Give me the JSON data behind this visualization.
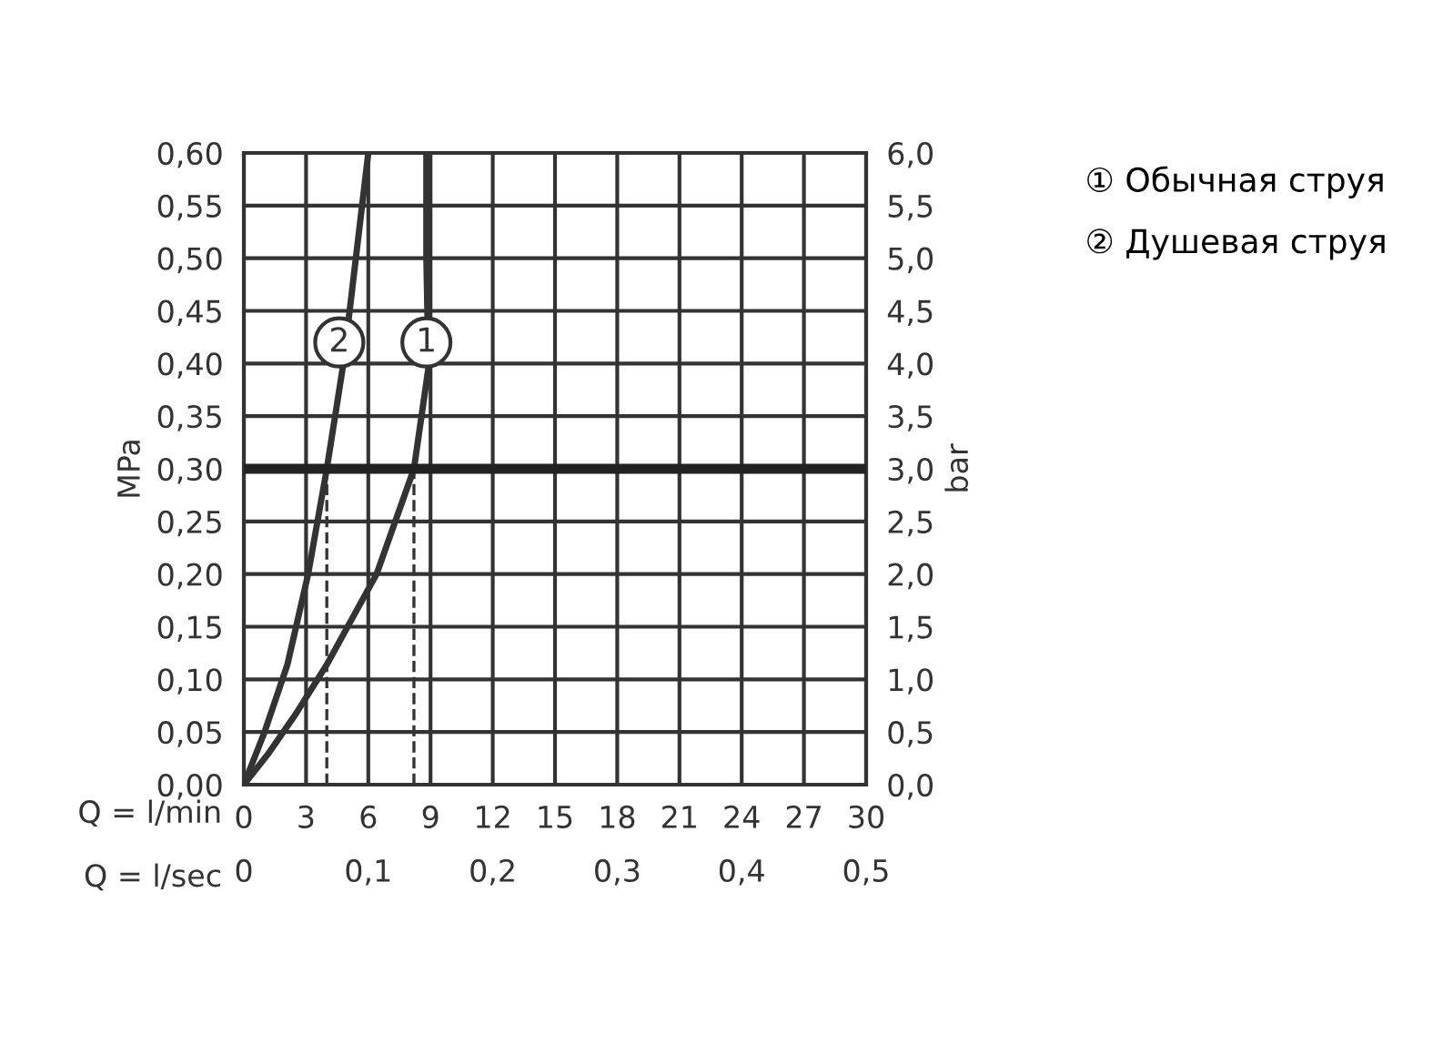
{
  "chart_data": {
    "type": "line",
    "ylabel": "MPa",
    "y2label": "bar",
    "xlabel": "Q = l/min",
    "x2label": "Q = l/sec",
    "xlim": [
      0,
      30
    ],
    "xticks": [
      0,
      3,
      6,
      9,
      12,
      15,
      18,
      21,
      24,
      27,
      30
    ],
    "x2lim": [
      0,
      0.5
    ],
    "x2ticks": [
      0,
      {
        "value": 0.1,
        "label": "0,1"
      },
      {
        "value": 0.2,
        "label": "0,2"
      },
      {
        "value": 0.3,
        "label": "0,3"
      },
      {
        "value": 0.4,
        "label": "0,4"
      },
      {
        "value": 0.5,
        "label": "0,5"
      }
    ],
    "ylim": [
      0,
      0.6
    ],
    "yticks": [
      {
        "value": 0,
        "label": "0,00"
      },
      {
        "value": 0.05,
        "label": "0,05"
      },
      {
        "value": 0.1,
        "label": "0,10"
      },
      {
        "value": 0.15,
        "label": "0,15"
      },
      {
        "value": 0.2,
        "label": "0,20"
      },
      {
        "value": 0.25,
        "label": "0,25"
      },
      {
        "value": 0.3,
        "label": "0,30"
      },
      {
        "value": 0.35,
        "label": "0,35"
      },
      {
        "value": 0.4,
        "label": "0,40"
      },
      {
        "value": 0.45,
        "label": "0,45"
      },
      {
        "value": 0.5,
        "label": "0,50"
      },
      {
        "value": 0.55,
        "label": "0,55"
      },
      {
        "value": 0.6,
        "label": "0,60"
      }
    ],
    "y2lim": [
      0,
      6
    ],
    "y2ticks": [
      {
        "value": 0,
        "label": "0,0"
      },
      {
        "value": 0.5,
        "label": "0,5"
      },
      {
        "value": 1,
        "label": "1,0"
      },
      {
        "value": 1.5,
        "label": "1,5"
      },
      {
        "value": 2,
        "label": "2,0"
      },
      {
        "value": 2.5,
        "label": "2,5"
      },
      {
        "value": 3,
        "label": "3,0"
      },
      {
        "value": 3.5,
        "label": "3,5"
      },
      {
        "value": 4,
        "label": "4,0"
      },
      {
        "value": 4.5,
        "label": "4,5"
      },
      {
        "value": 5,
        "label": "5,0"
      },
      {
        "value": 5.5,
        "label": "5,5"
      },
      {
        "value": 6,
        "label": "6,0"
      }
    ],
    "grid": true,
    "legend": "right",
    "marker": "none",
    "line_style": "solid",
    "series": [
      {
        "name": "① Обычная струя",
        "color": "#333333",
        "x": [
          0,
          1.2,
          2.5,
          4.0,
          6.4,
          8.2,
          8.9,
          8.8,
          8.8
        ],
        "values": [
          0,
          0.03,
          0.067,
          0.114,
          0.2,
          0.3,
          0.396,
          0.5,
          0.6
        ]
      },
      {
        "name": "② Душевая струя",
        "color": "#333333",
        "x": [
          0,
          1.0,
          2.1,
          3.1,
          4.0,
          4.8,
          5.4,
          6.0
        ],
        "values": [
          0,
          0.05,
          0.114,
          0.2,
          0.3,
          0.4,
          0.5,
          0.6
        ]
      }
    ],
    "ref_lines": [
      {
        "axis": "y",
        "value": 0.3,
        "color": "#222222",
        "line_style": "solid"
      },
      {
        "axis": "x",
        "value": 8.2,
        "color": "#333333",
        "line_style": "dashed"
      },
      {
        "axis": "x",
        "value": 4.0,
        "color": "#333333",
        "line_style": "dashed"
      }
    ],
    "annotations": [
      {
        "text": "1",
        "x": 8.8,
        "y": 0.42
      },
      {
        "text": "2",
        "x": 4.6,
        "y": 0.42
      }
    ]
  }
}
